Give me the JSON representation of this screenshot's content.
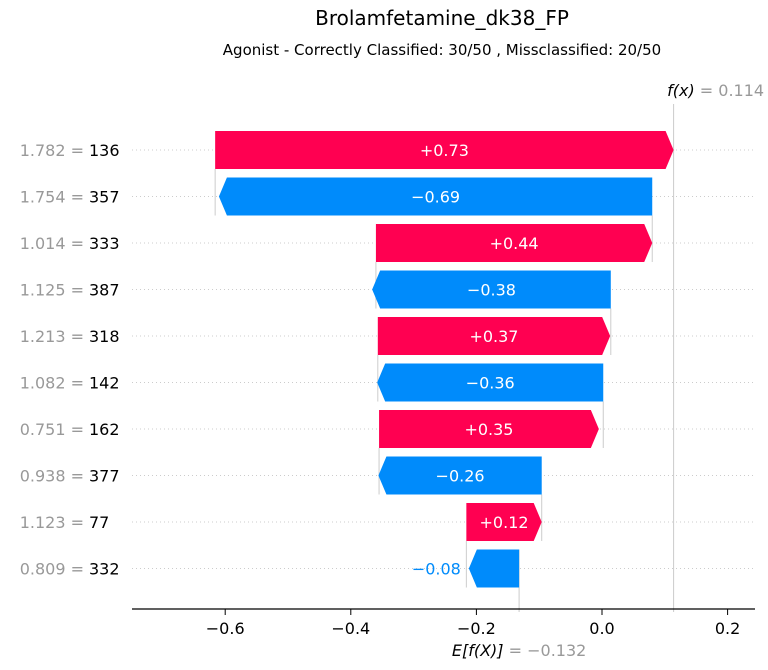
{
  "header": {
    "title": "Brolamfetamine_dk38_FP",
    "subtitle": "Agonist - Correctly Classified: 30/50 , Missclassified: 20/50"
  },
  "chart_data": {
    "type": "waterfall",
    "base_value_label": "E[f(X)]",
    "base_value_text": "= −0.132",
    "base_value": -0.132,
    "output_value_label": "f(x)",
    "output_value_text": "= 0.114",
    "output_value": 0.114,
    "xlim": [
      -0.74,
      0.24
    ],
    "xticks": [
      -0.6,
      -0.4,
      -0.2,
      0.0,
      0.2
    ],
    "xtick_labels": [
      "−0.6",
      "−0.4",
      "−0.2",
      "0.0",
      "0.2"
    ],
    "features": [
      {
        "value_text": "1.782 =",
        "name": "136",
        "contribution": 0.73,
        "label": "+0.73",
        "start": -0.616
      },
      {
        "value_text": "1.754 =",
        "name": "357",
        "contribution": -0.69,
        "label": "−0.69",
        "start": 0.08
      },
      {
        "value_text": "1.014 =",
        "name": "333",
        "contribution": 0.44,
        "label": "+0.44",
        "start": -0.36
      },
      {
        "value_text": "1.125 =",
        "name": "387",
        "contribution": -0.38,
        "label": "−0.38",
        "start": 0.014
      },
      {
        "value_text": "1.213 =",
        "name": "318",
        "contribution": 0.37,
        "label": "+0.37",
        "start": -0.357
      },
      {
        "value_text": "1.082 =",
        "name": "142",
        "contribution": -0.36,
        "label": "−0.36",
        "start": 0.002
      },
      {
        "value_text": "0.751 =",
        "name": "162",
        "contribution": 0.35,
        "label": "+0.35",
        "start": -0.355
      },
      {
        "value_text": "0.938 =",
        "name": "377",
        "contribution": -0.26,
        "label": "−0.26",
        "start": -0.096
      },
      {
        "value_text": "1.123 =",
        "name": "77",
        "contribution": 0.12,
        "label": "+0.12",
        "start": -0.216
      },
      {
        "value_text": "0.809 =",
        "name": "332",
        "contribution": -0.08,
        "label": "−0.08",
        "start": -0.132
      }
    ],
    "colors": {
      "positive": "#ff0051",
      "negative": "#008bfb",
      "value_grey": "#999999",
      "gridline": "#cccccc"
    }
  }
}
